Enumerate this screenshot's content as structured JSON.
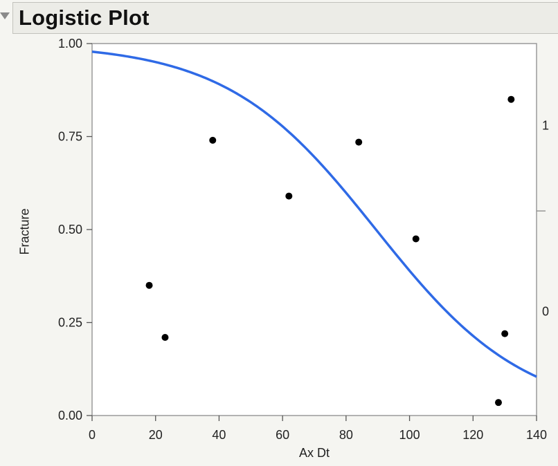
{
  "panel": {
    "title": "Logistic Plot"
  },
  "chart_data": {
    "type": "scatter",
    "xlabel": "Ax Dt",
    "ylabel": "Fracture",
    "xlim": [
      0,
      140
    ],
    "ylim": [
      0,
      1
    ],
    "x_ticks": [
      0,
      20,
      40,
      60,
      80,
      100,
      120,
      140
    ],
    "y_ticks": [
      "0.00",
      "0.25",
      "0.50",
      "0.75",
      "1.00"
    ],
    "right_axis_labels": [
      {
        "label": "1",
        "y": 0.78
      },
      {
        "label": "0",
        "y": 0.28
      }
    ],
    "right_axis_divider": 0.55,
    "curve": {
      "color": "#2f6ae6",
      "logit_intercept": 3.8,
      "logit_slope": -0.0425
    },
    "points": [
      {
        "x": 18,
        "y": 0.35
      },
      {
        "x": 23,
        "y": 0.21
      },
      {
        "x": 38,
        "y": 0.74
      },
      {
        "x": 62,
        "y": 0.59
      },
      {
        "x": 84,
        "y": 0.735
      },
      {
        "x": 102,
        "y": 0.475
      },
      {
        "x": 128,
        "y": 0.035
      },
      {
        "x": 130,
        "y": 0.22
      },
      {
        "x": 132,
        "y": 0.85
      }
    ],
    "grid": false,
    "point_color": "#000000"
  }
}
